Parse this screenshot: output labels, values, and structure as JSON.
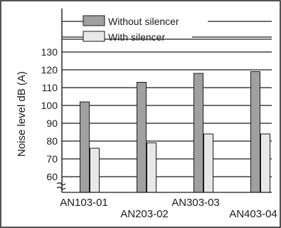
{
  "chart_data": {
    "type": "bar",
    "ylabel": "Noise level dB (A)",
    "categories": [
      "AN103-01",
      "AN203-02",
      "AN303-03",
      "AN403-04"
    ],
    "series": [
      {
        "name": "Without silencer",
        "values": [
          102,
          113,
          118,
          119
        ],
        "color": "#a0a0a0"
      },
      {
        "name": "With silencer",
        "values": [
          76,
          79,
          84,
          84
        ],
        "color": "#e8e8e8"
      }
    ],
    "yticks": [
      60,
      70,
      80,
      90,
      100,
      110,
      120,
      130
    ],
    "ylim": [
      55,
      130
    ],
    "axis_break": true,
    "grid": true,
    "legend_position": "top",
    "colors": {
      "line": "#1a1a1a",
      "border": "#1a1a1a",
      "background": "#ffffff"
    }
  }
}
